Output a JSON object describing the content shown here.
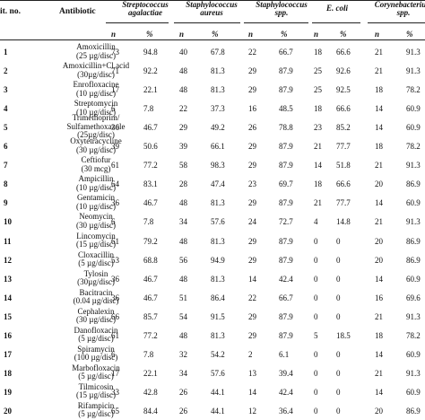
{
  "headers": {
    "no": "it. no.",
    "antibiotic": "Antibiotic",
    "species": [
      {
        "line1": "Streptococcus",
        "line2": "agalactiae"
      },
      {
        "line1": "Staphylococcus",
        "line2": "aureus"
      },
      {
        "line1": "Staphylococcus",
        "line2": "spp."
      },
      {
        "line1": "E. coli",
        "line2": ""
      },
      {
        "line1": "Corynebacterium",
        "line2": "spp."
      }
    ],
    "n": "n",
    "pct": "%"
  },
  "rows": [
    {
      "no": "1",
      "ab1": "Amoxicillin",
      "ab2": "(25 µg/disc)",
      "v": [
        "73",
        "94.8",
        "40",
        "67.8",
        "22",
        "66.7",
        "18",
        "66.6",
        "21",
        "91.3"
      ]
    },
    {
      "no": "2",
      "ab1": "Amoxicillin+Cl.acid",
      "ab2": "(30µg/disc)",
      "v": [
        "71",
        "92.2",
        "48",
        "81.3",
        "29",
        "87.9",
        "25",
        "92.6",
        "21",
        "91.3"
      ]
    },
    {
      "no": "3",
      "ab1": "Enrofloxacine",
      "ab2": "(10 µg/disc)",
      "v": [
        "17",
        "22.1",
        "48",
        "81.3",
        "29",
        "87.9",
        "25",
        "92.5",
        "18",
        "78.2"
      ]
    },
    {
      "no": "4",
      "ab1": "Streptomycin",
      "ab2": "(10 µg/disc)",
      "v": [
        "6",
        "7.8",
        "22",
        "37.3",
        "16",
        "48.5",
        "18",
        "66.6",
        "14",
        "60.9"
      ]
    },
    {
      "no": "5",
      "ab1": "Trimethoprim/",
      "ab2": "Sulfamethoxazole",
      "ab3": "(25µg/disc)",
      "v": [
        "36",
        "46.7",
        "29",
        "49.2",
        "26",
        "78.8",
        "23",
        "85.2",
        "14",
        "60.9"
      ]
    },
    {
      "no": "6",
      "ab1": "Oxytetracycline",
      "ab2": "(30 µg/disc)",
      "v": [
        "39",
        "50.6",
        "39",
        "66.1",
        "29",
        "87.9",
        "21",
        "77.7",
        "18",
        "78.2"
      ]
    },
    {
      "no": "7",
      "ab1": "Ceftiofur",
      "ab2": "(30 mcg)",
      "v": [
        "61",
        "77.2",
        "58",
        "98.3",
        "29",
        "87.9",
        "14",
        "51.8",
        "21",
        "91.3"
      ]
    },
    {
      "no": "8",
      "ab1": "Ampicillin",
      "ab2": "(10 µg/disc)",
      "v": [
        "64",
        "83.1",
        "28",
        "47.4",
        "23",
        "69.7",
        "18",
        "66.6",
        "20",
        "86.9"
      ]
    },
    {
      "no": "9",
      "ab1": "Gentamicin",
      "ab2": "(10 µg/disc)",
      "v": [
        "36",
        "46.7",
        "48",
        "81.3",
        "29",
        "87.9",
        "21",
        "77.7",
        "14",
        "60.9"
      ]
    },
    {
      "no": "10",
      "ab1": "Neomycin",
      "ab2": "(30 µg/disc)",
      "v": [
        "6",
        "7.8",
        "34",
        "57.6",
        "24",
        "72.7",
        "4",
        "14.8",
        "21",
        "91.3"
      ]
    },
    {
      "no": "11",
      "ab1": "Lincomycin",
      "ab2": "(15 µg/disc)",
      "v": [
        "61",
        "79.2",
        "48",
        "81.3",
        "29",
        "87.9",
        "0",
        "0",
        "20",
        "86.9"
      ]
    },
    {
      "no": "12",
      "ab1": "Cloxacillin",
      "ab2": "(5 µg/disc)",
      "v": [
        "53",
        "68.8",
        "56",
        "94.9",
        "29",
        "87.9",
        "0",
        "0",
        "20",
        "86.9"
      ]
    },
    {
      "no": "13",
      "ab1": "Tylosin",
      "ab2": "(30µg/disc)",
      "v": [
        "36",
        "46.7",
        "48",
        "81.3",
        "14",
        "42.4",
        "0",
        "0",
        "14",
        "60.9"
      ]
    },
    {
      "no": "14",
      "ab1": "Bacitracin",
      "ab2": "(0.04 µg/disc)",
      "v": [
        "36",
        "46.7",
        "51",
        "86.4",
        "22",
        "66.7",
        "0",
        "0",
        "16",
        "69.6"
      ]
    },
    {
      "no": "15",
      "ab1": "Cephalexin",
      "ab2": "(30 µg/disc)",
      "v": [
        "66",
        "85.7",
        "54",
        "91.5",
        "29",
        "87.9",
        "0",
        "0",
        "21",
        "91.3"
      ]
    },
    {
      "no": "16",
      "ab1": "Danofloxacin",
      "ab2": "(5 µg/disc)",
      "v": [
        "61",
        "77.2",
        "48",
        "81.3",
        "29",
        "87.9",
        "5",
        "18.5",
        "18",
        "78.2"
      ]
    },
    {
      "no": "17",
      "ab1": "Spiramycin",
      "ab2": "(100 µg/disc)",
      "v": [
        "6",
        "7.8",
        "32",
        "54.2",
        "2",
        "6.1",
        "0",
        "0",
        "14",
        "60.9"
      ]
    },
    {
      "no": "18",
      "ab1": "Marbofloxacin",
      "ab2": "(5 µg/disc)",
      "v": [
        "17",
        "22.1",
        "34",
        "57.6",
        "13",
        "39.4",
        "0",
        "0",
        "21",
        "91.3"
      ]
    },
    {
      "no": "19",
      "ab1": "Tilmicosin",
      "ab2": "(15 µg/disc)",
      "v": [
        "33",
        "42.8",
        "26",
        "44.1",
        "14",
        "42.4",
        "0",
        "0",
        "14",
        "60.9"
      ]
    },
    {
      "no": "20",
      "ab1": "Rifampicin",
      "ab2": "(5 µg/disc)",
      "v": [
        "65",
        "84.4",
        "26",
        "44.1",
        "12",
        "36.4",
        "0",
        "0",
        "20",
        "86.9"
      ]
    }
  ]
}
